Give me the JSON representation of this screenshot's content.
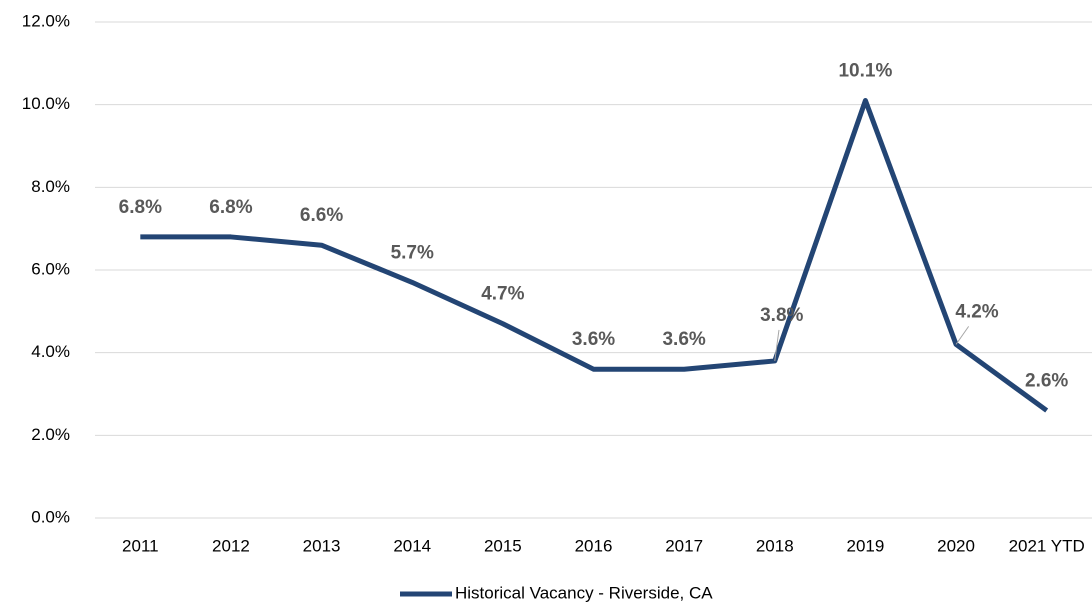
{
  "chart_data": {
    "type": "line",
    "categories": [
      "2011",
      "2012",
      "2013",
      "2014",
      "2015",
      "2016",
      "2017",
      "2018",
      "2019",
      "2020",
      "2021 YTD"
    ],
    "series": [
      {
        "name": "Historical Vacancy - Riverside, CA",
        "color": "#234574",
        "values": [
          6.8,
          6.8,
          6.6,
          5.7,
          4.7,
          3.6,
          3.6,
          3.8,
          10.1,
          4.2,
          2.6
        ],
        "value_labels": [
          "6.8%",
          "6.8%",
          "6.6%",
          "5.7%",
          "4.7%",
          "3.6%",
          "3.6%",
          "3.8%",
          "10.1%",
          "4.2%",
          "2.6%"
        ]
      }
    ],
    "ylim": [
      0,
      12
    ],
    "yticks": [
      {
        "value": 0,
        "label": "0.0%"
      },
      {
        "value": 2,
        "label": "2.0%"
      },
      {
        "value": 4,
        "label": "4.0%"
      },
      {
        "value": 6,
        "label": "6.0%"
      },
      {
        "value": 8,
        "label": "8.0%"
      },
      {
        "value": 10,
        "label": "10.0%"
      },
      {
        "value": 12,
        "label": "12.0%"
      }
    ],
    "grid": true,
    "legend": "bottom"
  }
}
